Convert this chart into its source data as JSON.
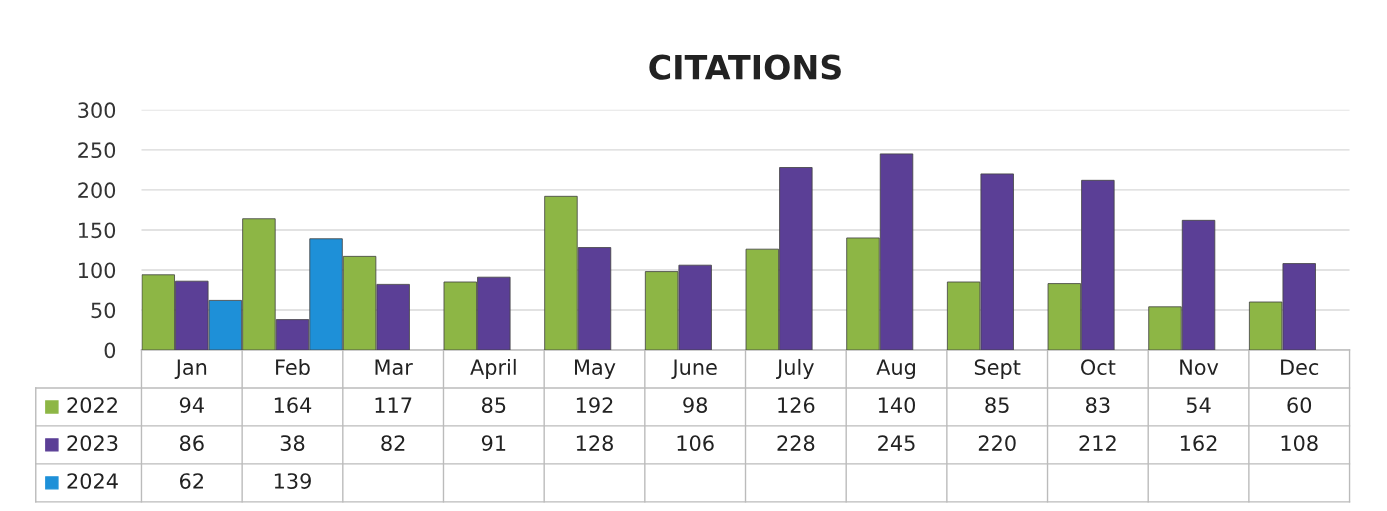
{
  "chart_data": {
    "type": "bar",
    "title": "CITATIONS",
    "categories": [
      "Jan",
      "Feb",
      "Mar",
      "April",
      "May",
      "June",
      "July",
      "Aug",
      "Sept",
      "Oct",
      "Nov",
      "Dec"
    ],
    "series": [
      {
        "name": "2022",
        "color": "#8db645",
        "values": [
          94,
          164,
          117,
          85,
          192,
          98,
          126,
          140,
          85,
          83,
          54,
          60
        ]
      },
      {
        "name": "2023",
        "color": "#5b3f96",
        "values": [
          86,
          38,
          82,
          91,
          128,
          106,
          228,
          245,
          220,
          212,
          162,
          108
        ]
      },
      {
        "name": "2024",
        "color": "#1e90d8",
        "values": [
          62,
          139,
          null,
          null,
          null,
          null,
          null,
          null,
          null,
          null,
          null,
          null
        ]
      }
    ],
    "ylim": [
      0,
      300
    ],
    "yticks": [
      0,
      50,
      100,
      150,
      200,
      250,
      300
    ],
    "grid": "y",
    "legend": "bottom",
    "data_labels": true
  }
}
